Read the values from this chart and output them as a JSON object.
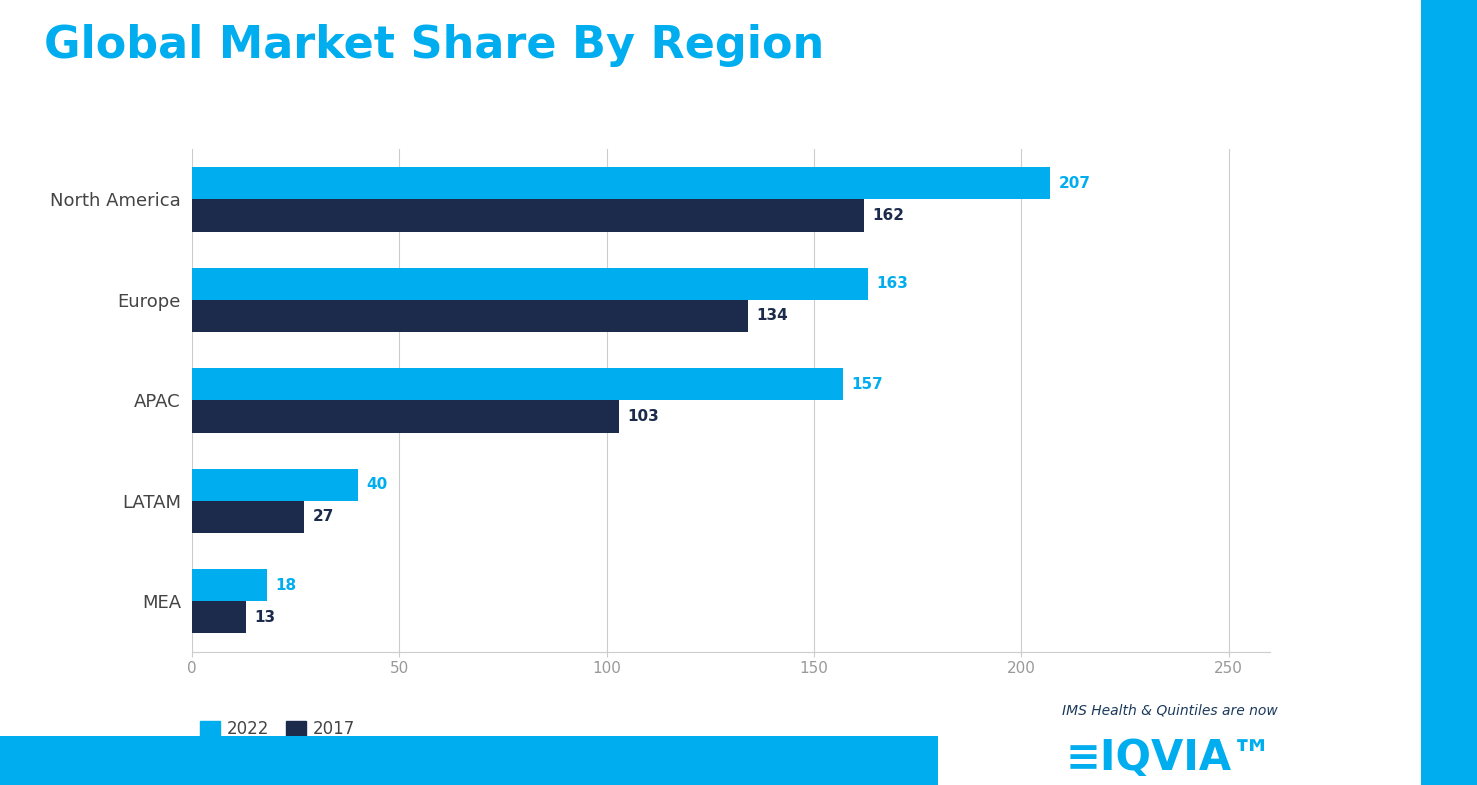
{
  "title": "Global Market Share By Region",
  "title_color": "#00AEEF",
  "title_fontsize": 32,
  "background_color": "#FFFFFF",
  "categories": [
    "North America",
    "Europe",
    "APAC",
    "LATAM",
    "MEA"
  ],
  "values_2022": [
    207,
    163,
    157,
    40,
    18
  ],
  "values_2017": [
    162,
    134,
    103,
    27,
    13
  ],
  "color_2022": "#00AEEF",
  "color_2017": "#1C2B4B",
  "label_2022": "2022",
  "label_2017": "2017",
  "xlim": [
    0,
    260
  ],
  "xticks": [
    0,
    50,
    100,
    150,
    200,
    250
  ],
  "bar_height": 0.32,
  "footer_color": "#00AEEF",
  "right_border_color": "#00AEEF",
  "grid_color": "#CCCCCC",
  "tick_label_color": "#999999",
  "bar_label_color_2022": "#00AEEF",
  "bar_label_color_2017": "#1C2B4B",
  "legend_color_2022": "#00AEEF",
  "legend_color_2017": "#1C2B4B",
  "category_label_color": "#444444"
}
